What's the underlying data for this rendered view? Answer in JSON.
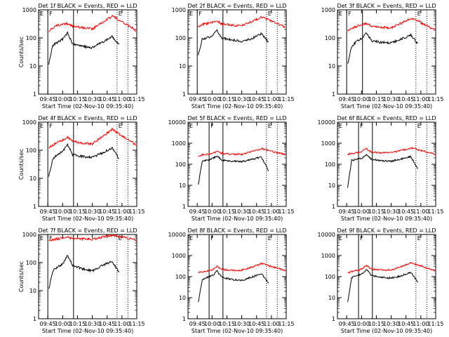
{
  "figure": {
    "type": "multi-panel time series (3x3)",
    "series_colors": {
      "events": "#000000",
      "lld": "#ff0000"
    }
  },
  "chart_data": [
    {
      "type": "line",
      "title": "Det 1f BLACK = Events, RED = LLD",
      "xlabel": "Start Time (02-Nov-10 09:35:40)",
      "ylabel": "Counts/sec",
      "x_ticks": [
        "09:45",
        "10:00",
        "10:15",
        "10:30",
        "10:45",
        "11:00",
        "11:15"
      ],
      "y_ticks": [
        "1",
        "10",
        "100",
        "1000"
      ],
      "y_scale": "log",
      "ylim": [
        1,
        1000
      ],
      "vertical_markers": {
        "solid": [
          "09:45",
          "10:11"
        ],
        "dotted": [
          "10:55",
          "11:06"
        ]
      },
      "marker_labels": [
        "E",
        "F",
        "E"
      ],
      "series": [
        {
          "name": "Events",
          "color": "#000000",
          "x": [
            "09:46",
            "09:50",
            "09:55",
            "10:00",
            "10:05",
            "10:10",
            "10:20",
            "10:30",
            "10:40",
            "10:50",
            "10:57"
          ],
          "values": [
            12,
            55,
            70,
            90,
            150,
            60,
            50,
            45,
            70,
            110,
            60
          ]
        },
        {
          "name": "LLD",
          "color": "#ff0000",
          "x": [
            "09:46",
            "09:50",
            "09:55",
            "10:00",
            "10:05",
            "10:10",
            "10:20",
            "10:30",
            "10:40",
            "10:50",
            "11:00",
            "11:10",
            "11:14"
          ],
          "values": [
            180,
            220,
            280,
            300,
            320,
            260,
            230,
            210,
            350,
            600,
            380,
            230,
            180
          ]
        }
      ]
    },
    {
      "type": "line",
      "title": "Det 2f BLACK = Events, RED = LLD",
      "xlabel": "Start Time (02-Nov-10 09:35:40)",
      "ylabel": "",
      "x_ticks": [
        "09:45",
        "10:00",
        "10:15",
        "10:30",
        "10:45",
        "11:00",
        "11:15"
      ],
      "y_ticks": [
        "1",
        "10",
        "100",
        "1000"
      ],
      "y_scale": "log",
      "ylim": [
        1,
        1000
      ],
      "vertical_markers": {
        "solid": [
          "09:45",
          "10:11"
        ],
        "dotted": [
          "10:55",
          "11:06"
        ]
      },
      "marker_labels": [
        "E",
        "F",
        "E"
      ],
      "series": [
        {
          "name": "Events",
          "color": "#000000",
          "x": [
            "09:46",
            "09:50",
            "09:55",
            "10:00",
            "10:05",
            "10:10",
            "10:20",
            "10:30",
            "10:40",
            "10:50",
            "10:57"
          ],
          "values": [
            25,
            90,
            100,
            120,
            180,
            100,
            85,
            75,
            95,
            140,
            70
          ]
        },
        {
          "name": "LLD",
          "color": "#ff0000",
          "x": [
            "09:46",
            "09:50",
            "09:55",
            "10:00",
            "10:05",
            "10:10",
            "10:20",
            "10:30",
            "10:40",
            "10:50",
            "11:00",
            "11:10",
            "11:14"
          ],
          "values": [
            250,
            300,
            330,
            360,
            380,
            320,
            280,
            270,
            380,
            550,
            400,
            280,
            230
          ]
        }
      ]
    },
    {
      "type": "line",
      "title": "Det 3f BLACK = Events, RED = LLD",
      "xlabel": "Start Time (02-Nov-10 09:35:40)",
      "ylabel": "",
      "x_ticks": [
        "09:45",
        "10:00",
        "10:15",
        "10:30",
        "10:45",
        "11:00",
        "11:15"
      ],
      "y_ticks": [
        "1",
        "10",
        "100",
        "1000"
      ],
      "y_scale": "log",
      "ylim": [
        1,
        1000
      ],
      "vertical_markers": {
        "solid": [
          "09:45",
          "10:01"
        ],
        "dotted": [
          "10:55",
          "11:06"
        ]
      },
      "marker_labels": [
        "E",
        "F",
        "E"
      ],
      "series": [
        {
          "name": "Events",
          "color": "#000000",
          "x": [
            "09:46",
            "09:50",
            "09:55",
            "10:00",
            "10:05",
            "10:10",
            "10:20",
            "10:30",
            "10:40",
            "10:50",
            "10:57"
          ],
          "values": [
            12,
            50,
            75,
            95,
            150,
            80,
            70,
            65,
            90,
            130,
            60
          ]
        },
        {
          "name": "LLD",
          "color": "#ff0000",
          "x": [
            "09:46",
            "09:50",
            "09:55",
            "10:00",
            "10:05",
            "10:10",
            "10:20",
            "10:30",
            "10:40",
            "10:50",
            "11:00",
            "11:10",
            "11:14"
          ],
          "values": [
            180,
            220,
            260,
            300,
            320,
            270,
            240,
            230,
            330,
            500,
            350,
            230,
            190
          ]
        }
      ]
    },
    {
      "type": "line",
      "title": "Det 4f BLACK = Events, RED = LLD",
      "xlabel": "Start Time (02-Nov-10 09:35:40)",
      "ylabel": "Counts/sec",
      "x_ticks": [
        "09:45",
        "10:00",
        "10:15",
        "10:30",
        "10:45",
        "11:00",
        "11:15"
      ],
      "y_ticks": [
        "1",
        "10",
        "100",
        "1000"
      ],
      "y_scale": "log",
      "ylim": [
        1,
        1000
      ],
      "vertical_markers": {
        "solid": [
          "09:45",
          "10:11"
        ],
        "dotted": [
          "10:55",
          "11:06"
        ]
      },
      "marker_labels": [
        "E",
        "F",
        "E"
      ],
      "series": [
        {
          "name": "Events",
          "color": "#000000",
          "x": [
            "09:46",
            "09:50",
            "09:55",
            "10:00",
            "10:05",
            "10:10",
            "10:20",
            "10:30",
            "10:40",
            "10:50",
            "10:57"
          ],
          "values": [
            12,
            50,
            70,
            90,
            160,
            70,
            60,
            55,
            80,
            120,
            50
          ]
        },
        {
          "name": "LLD",
          "color": "#ff0000",
          "x": [
            "09:46",
            "09:50",
            "09:55",
            "10:00",
            "10:05",
            "10:10",
            "10:20",
            "10:30",
            "10:40",
            "10:50",
            "11:00",
            "11:10",
            "11:14"
          ],
          "values": [
            120,
            150,
            190,
            230,
            300,
            210,
            180,
            170,
            300,
            550,
            330,
            200,
            150
          ]
        }
      ]
    },
    {
      "type": "line",
      "title": "Det 5f BLACK = Events, RED = LLD",
      "xlabel": "Start Time (02-Nov-10 09:35:40)",
      "ylabel": "",
      "x_ticks": [
        "09:45",
        "10:00",
        "10:15",
        "10:30",
        "10:45",
        "11:00",
        "11:15"
      ],
      "y_ticks": [
        "1",
        "10",
        "100",
        "1000",
        "10000"
      ],
      "y_scale": "log",
      "ylim": [
        1,
        10000
      ],
      "vertical_markers": {
        "solid": [
          "09:57",
          "10:11"
        ],
        "dotted": [
          "10:55",
          "11:06"
        ]
      },
      "marker_labels": [
        "E",
        "F",
        "E"
      ],
      "series": [
        {
          "name": "Events",
          "color": "#000000",
          "x": [
            "09:46",
            "09:50",
            "09:55",
            "10:00",
            "10:05",
            "10:10",
            "10:20",
            "10:30",
            "10:40",
            "10:50",
            "10:57"
          ],
          "values": [
            10,
            140,
            160,
            180,
            250,
            160,
            140,
            130,
            170,
            220,
            50
          ]
        },
        {
          "name": "LLD",
          "color": "#ff0000",
          "x": [
            "09:46",
            "09:50",
            "09:55",
            "10:00",
            "10:05",
            "10:10",
            "10:20",
            "10:30",
            "10:40",
            "10:50",
            "11:00",
            "11:10",
            "11:14"
          ],
          "values": [
            250,
            280,
            300,
            320,
            400,
            330,
            300,
            300,
            400,
            550,
            420,
            320,
            280
          ]
        }
      ]
    },
    {
      "type": "line",
      "title": "Det 6f BLACK = Events, RED = LLD",
      "xlabel": "Start Time (02-Nov-10 09:35:40)",
      "ylabel": "",
      "x_ticks": [
        "09:45",
        "10:00",
        "10:15",
        "10:30",
        "10:45",
        "11:00",
        "11:15"
      ],
      "y_ticks": [
        "1",
        "10",
        "100",
        "1000",
        "10000"
      ],
      "y_scale": "log",
      "ylim": [
        1,
        10000
      ],
      "vertical_markers": {
        "solid": [
          "09:57",
          "10:11"
        ],
        "dotted": [
          "10:55",
          "11:06"
        ]
      },
      "marker_labels": [
        "E",
        "F",
        "E"
      ],
      "series": [
        {
          "name": "Events",
          "color": "#000000",
          "x": [
            "09:46",
            "09:50",
            "09:55",
            "10:00",
            "10:05",
            "10:10",
            "10:20",
            "10:30",
            "10:40",
            "10:50",
            "10:57"
          ],
          "values": [
            8,
            150,
            170,
            190,
            280,
            170,
            150,
            140,
            180,
            230,
            60
          ]
        },
        {
          "name": "LLD",
          "color": "#ff0000",
          "x": [
            "09:46",
            "09:50",
            "09:55",
            "10:00",
            "10:05",
            "10:10",
            "10:20",
            "10:30",
            "10:40",
            "10:50",
            "11:00",
            "11:10",
            "11:14"
          ],
          "values": [
            300,
            330,
            350,
            380,
            550,
            380,
            350,
            360,
            450,
            600,
            450,
            350,
            300
          ]
        }
      ]
    },
    {
      "type": "line",
      "title": "Det 7f BLACK = Events, RED = LLD",
      "xlabel": "Start Time (02-Nov-10 09:35:40)",
      "ylabel": "Counts/sec",
      "x_ticks": [
        "09:45",
        "10:00",
        "10:15",
        "10:30",
        "10:45",
        "11:00",
        "11:15"
      ],
      "y_ticks": [
        "1",
        "10",
        "100",
        "1000"
      ],
      "y_scale": "log",
      "ylim": [
        1,
        1000
      ],
      "vertical_markers": {
        "solid": [
          "09:45",
          "10:11"
        ],
        "dotted": [
          "10:55",
          "11:06"
        ]
      },
      "marker_labels": [
        "E",
        "F",
        "E"
      ],
      "series": [
        {
          "name": "Events",
          "color": "#000000",
          "x": [
            "09:46",
            "09:50",
            "09:55",
            "10:00",
            "10:05",
            "10:10",
            "10:20",
            "10:30",
            "10:40",
            "10:50",
            "10:57"
          ],
          "values": [
            12,
            50,
            70,
            90,
            180,
            80,
            60,
            50,
            80,
            110,
            45
          ]
        },
        {
          "name": "LLD",
          "color": "#ff0000",
          "x": [
            "09:46",
            "09:50",
            "09:55",
            "10:00",
            "10:05",
            "10:10",
            "10:20",
            "10:30",
            "10:40",
            "10:50",
            "11:00",
            "11:10",
            "11:14"
          ],
          "values": [
            600,
            650,
            700,
            750,
            800,
            720,
            700,
            680,
            800,
            950,
            800,
            700,
            600
          ]
        }
      ]
    },
    {
      "type": "line",
      "title": "Det 8f BLACK = Events, RED = LLD",
      "xlabel": "Start Time (02-Nov-10 09:35:40)",
      "ylabel": "",
      "x_ticks": [
        "09:45",
        "10:00",
        "10:15",
        "10:30",
        "10:45",
        "11:00",
        "11:15"
      ],
      "y_ticks": [
        "1",
        "10",
        "100",
        "1000",
        "10000"
      ],
      "y_scale": "log",
      "ylim": [
        1,
        10000
      ],
      "vertical_markers": {
        "solid": [
          "09:57",
          "10:11"
        ],
        "dotted": [
          "10:55",
          "11:06"
        ]
      },
      "marker_labels": [
        "E",
        "F",
        "E"
      ],
      "series": [
        {
          "name": "Events",
          "color": "#000000",
          "x": [
            "09:46",
            "09:50",
            "09:55",
            "10:00",
            "10:05",
            "10:10",
            "10:20",
            "10:30",
            "10:40",
            "10:50",
            "10:57"
          ],
          "values": [
            6,
            70,
            90,
            110,
            180,
            90,
            75,
            65,
            95,
            140,
            50
          ]
        },
        {
          "name": "LLD",
          "color": "#ff0000",
          "x": [
            "09:46",
            "09:50",
            "09:55",
            "10:00",
            "10:05",
            "10:10",
            "10:20",
            "10:30",
            "10:40",
            "10:50",
            "11:00",
            "11:10",
            "11:14"
          ],
          "values": [
            150,
            170,
            190,
            210,
            300,
            220,
            200,
            200,
            280,
            420,
            300,
            220,
            190
          ]
        }
      ]
    },
    {
      "type": "line",
      "title": "Det 9f BLACK = Events, RED = LLD",
      "xlabel": "Start Time (02-Nov-10 09:35:40)",
      "ylabel": "",
      "x_ticks": [
        "09:45",
        "10:00",
        "10:15",
        "10:30",
        "10:45",
        "11:00",
        "11:15"
      ],
      "y_ticks": [
        "1",
        "10",
        "100",
        "1000",
        "10000"
      ],
      "y_scale": "log",
      "ylim": [
        1,
        10000
      ],
      "vertical_markers": {
        "solid": [
          "09:57",
          "10:11"
        ],
        "dotted": [
          "10:55",
          "11:06"
        ]
      },
      "marker_labels": [
        "E",
        "F",
        "E"
      ],
      "series": [
        {
          "name": "Events",
          "color": "#000000",
          "x": [
            "09:46",
            "09:50",
            "09:55",
            "10:00",
            "10:05",
            "10:10",
            "10:20",
            "10:30",
            "10:40",
            "10:50",
            "10:57"
          ],
          "values": [
            6,
            90,
            110,
            130,
            220,
            110,
            95,
            85,
            110,
            160,
            55
          ]
        },
        {
          "name": "LLD",
          "color": "#ff0000",
          "x": [
            "09:46",
            "09:50",
            "09:55",
            "10:00",
            "10:05",
            "10:10",
            "10:20",
            "10:30",
            "10:40",
            "10:50",
            "11:00",
            "11:10",
            "11:14"
          ],
          "values": [
            150,
            170,
            200,
            230,
            330,
            230,
            210,
            210,
            300,
            450,
            320,
            230,
            190
          ]
        }
      ]
    }
  ]
}
